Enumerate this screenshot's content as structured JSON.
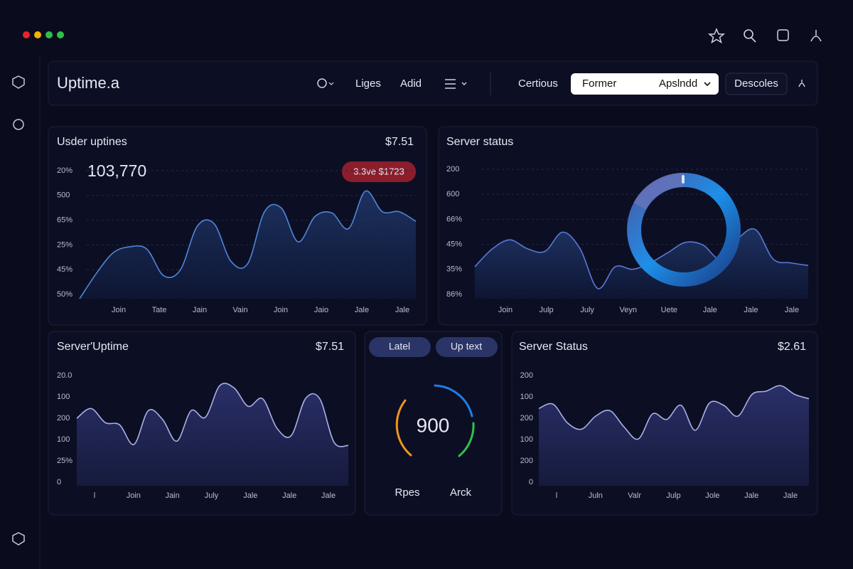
{
  "header": {
    "title": "Uptime.a",
    "nav": [
      "Liges",
      "Adid"
    ],
    "filter": "Certious",
    "select_label": "Former",
    "select_value": "Apslndd",
    "button": "Descoles"
  },
  "charts": [
    {
      "title": "Usder uptines",
      "value": "$7.51",
      "big": "103,770",
      "badge": "3.3ve $1723",
      "y_labels": [
        "20%",
        "500",
        "65%",
        "25%",
        "45%",
        "50%"
      ],
      "x_labels": [
        "Join",
        "Tate",
        "Jain",
        "Vain",
        "Join",
        "Jaio",
        "Jale",
        "Jale"
      ],
      "ylim": [
        0,
        100
      ],
      "color": "#4f86d8",
      "values": [
        0,
        21,
        38,
        43,
        41,
        19,
        24,
        60,
        62,
        31,
        29,
        72,
        75,
        47,
        68,
        71,
        58,
        89,
        72,
        72,
        64
      ]
    },
    {
      "title": "Server status",
      "y_labels": [
        "200",
        "600",
        "66%",
        "45%",
        "35%",
        "86%"
      ],
      "x_labels": [
        "Join",
        "Julp",
        "July",
        "Veyn",
        "Uete",
        "Jale",
        "Jale",
        "Jale"
      ],
      "ylim": [
        0,
        100
      ],
      "color": "#5a78d6",
      "values": [
        25,
        39,
        46,
        39,
        37,
        52,
        39,
        8,
        25,
        23,
        28,
        36,
        44,
        42,
        31,
        47,
        54,
        31,
        28,
        26
      ]
    },
    {
      "title": "Server'Uptime",
      "value": "$7.51",
      "y_labels": [
        "20.0",
        "100",
        "200",
        "100",
        "25%",
        "0"
      ],
      "x_labels": [
        "l",
        "Join",
        "Jain",
        "July",
        "Jale",
        "Jale",
        "Jale"
      ],
      "ylim": [
        0,
        100
      ],
      "color": "#a9b1e6",
      "values": [
        62,
        71,
        58,
        56,
        38,
        69,
        61,
        41,
        69,
        63,
        92,
        90,
        73,
        80,
        53,
        46,
        80,
        80,
        40,
        37
      ]
    },
    {
      "title": "Server Status",
      "value": "$2.61",
      "y_labels": [
        "200",
        "100",
        "200",
        "100",
        "200",
        "0"
      ],
      "x_labels": [
        "l",
        "Juln",
        "Valr",
        "Julp",
        "Jole",
        "Jale",
        "Jale"
      ],
      "ylim": [
        0,
        100
      ],
      "color": "#a9b1e6",
      "values": [
        71,
        75,
        58,
        52,
        64,
        69,
        54,
        43,
        66,
        61,
        74,
        51,
        76,
        74,
        64,
        84,
        87,
        92,
        84,
        80
      ]
    }
  ],
  "gauge": {
    "tabs": [
      "Latel",
      "Up text"
    ],
    "value": "900",
    "labels": [
      "Rpes",
      "Arck"
    ]
  }
}
